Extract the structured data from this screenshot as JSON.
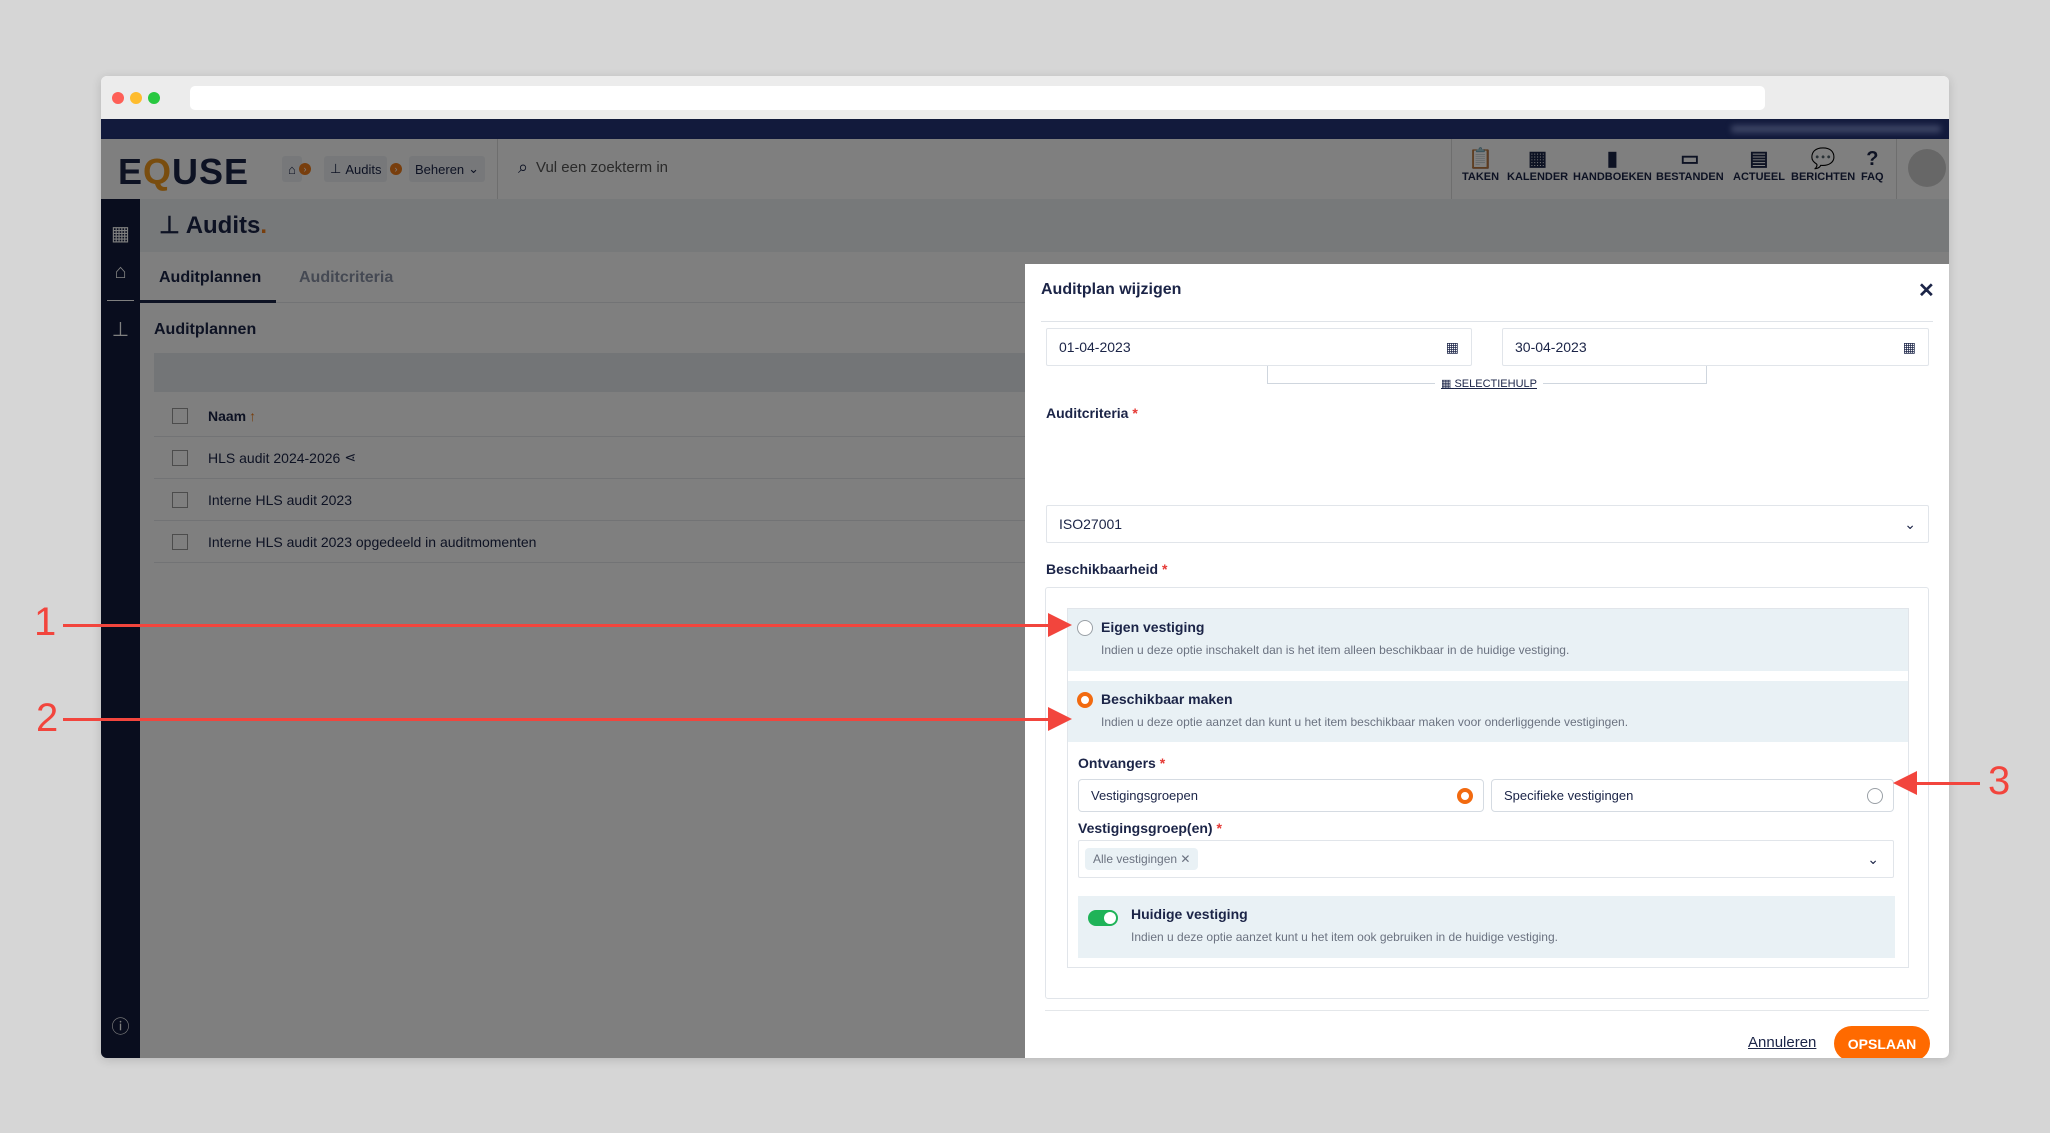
{
  "app": {
    "logo": "EQUSE"
  },
  "breadcrumb": {
    "home_icon": "home-icon",
    "audits": "Audits",
    "beheren": "Beheren"
  },
  "search": {
    "placeholder": "Vul een zoekterm in"
  },
  "toolbar": [
    {
      "label": "TAKEN",
      "icon": "clipboard-icon"
    },
    {
      "label": "KALENDER",
      "icon": "calendar-icon"
    },
    {
      "label": "HANDBOEKEN",
      "icon": "book-icon"
    },
    {
      "label": "BESTANDEN",
      "icon": "archive-icon"
    },
    {
      "label": "ACTUEEL",
      "icon": "newspaper-icon"
    },
    {
      "label": "BERICHTEN",
      "icon": "comments-icon"
    },
    {
      "label": "FAQ",
      "icon": "question-icon"
    }
  ],
  "page": {
    "title": "Audits",
    "title_dot": ".",
    "tabs": [
      "Auditplannen",
      "Auditcriteria"
    ],
    "section": "Auditplannen",
    "table": {
      "header": "Naam",
      "rows": [
        "HLS audit 2024-2026",
        "Interne HLS audit 2023",
        "Interne HLS audit 2023 opgedeeld in auditmomenten"
      ]
    }
  },
  "modal": {
    "title": "Auditplan wijzigen",
    "start_date": "01-04-2023",
    "end_date": "30-04-2023",
    "selectiehulp": "SELECTIEHULP",
    "auditcriteria_label": "Auditcriteria",
    "auditcriteria_value": "ISO27001",
    "beschikbaarheid_label": "Beschikbaarheid",
    "options": [
      {
        "title": "Eigen vestiging",
        "desc": "Indien u deze optie inschakelt dan is het item alleen beschikbaar in de huidige vestiging.",
        "selected": false
      },
      {
        "title": "Beschikbaar maken",
        "desc": "Indien u deze optie aanzet dan kunt u het item beschikbaar maken voor onderliggende vestigingen.",
        "selected": true
      }
    ],
    "ontvangers_label": "Ontvangers",
    "ontvangers": [
      {
        "label": "Vestigingsgroepen",
        "selected": true
      },
      {
        "label": "Specifieke vestigingen",
        "selected": false
      }
    ],
    "groepen_label": "Vestigingsgroep(en)",
    "groepen_selected": [
      "Alle vestigingen"
    ],
    "huidige": {
      "title": "Huidige vestiging",
      "desc": "Indien u deze optie aanzet kunt u het item ook gebruiken in de huidige vestiging.",
      "enabled": true
    },
    "required_mark": "*",
    "cancel": "Annuleren",
    "save": "OPSLAAN"
  },
  "annotations": [
    "1",
    "2",
    "3"
  ],
  "colors": {
    "accent": "#ff6a00",
    "navy": "#121a3c",
    "toggle_on": "#1fb358",
    "annotation": "#f2453d"
  }
}
